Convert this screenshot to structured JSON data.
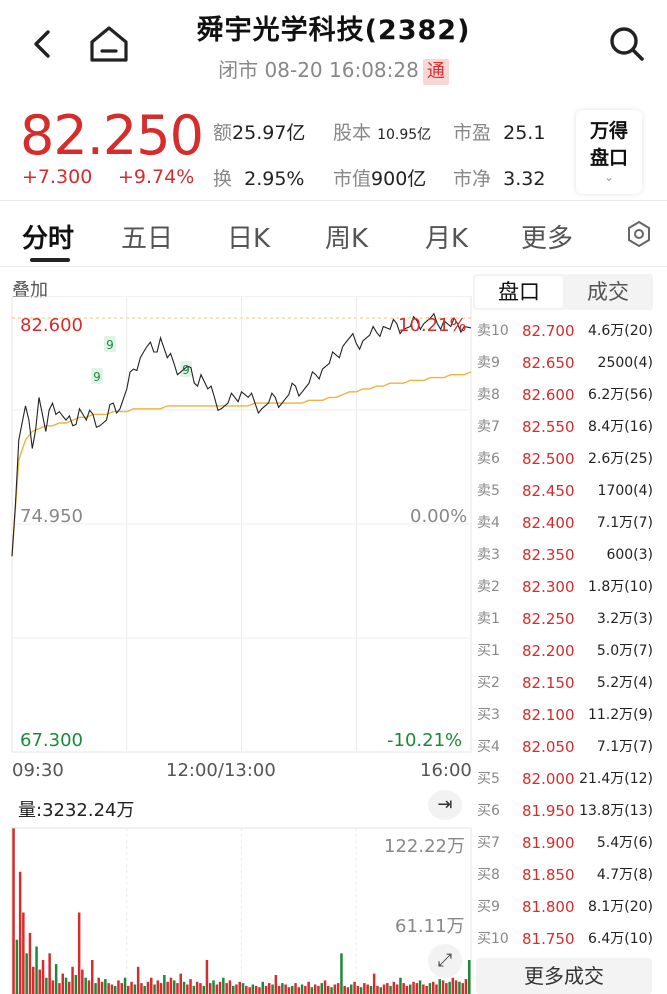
{
  "header": {
    "title": "舜宇光学科技(2382)",
    "status": "闭市 08-20 16:08:28",
    "tong_badge": "通"
  },
  "quote": {
    "price": "82.250",
    "change": "+7.300",
    "change_pct": "+9.74%",
    "amount_label": "额",
    "amount": "25.97亿",
    "shares_label": "股本",
    "shares": "10.95亿",
    "pe_label": "市盈",
    "pe": "25.1",
    "turnover_label": "换",
    "turnover": "2.95%",
    "mktcap_label": "市值",
    "mktcap": "900亿",
    "pb_label": "市净",
    "pb": "3.32",
    "wande_line1": "万得",
    "wande_line2": "盘口"
  },
  "tabs": [
    "分时",
    "五日",
    "日K",
    "周K",
    "月K",
    "更多"
  ],
  "chart": {
    "overlay_label": "叠加",
    "high_price": "82.600",
    "high_pct": "10.21%",
    "mid_price": "74.950",
    "mid_pct": "0.00%",
    "low_price": "67.300",
    "low_pct": "-10.21%",
    "time_start": "09:30",
    "time_mid": "12:00/13:00",
    "time_end": "16:00",
    "volume_label": "量:3232.24万",
    "volume_max": "122.22万",
    "volume_mid": "61.11万",
    "marker": "9",
    "colors": {
      "up": "#d62c2c",
      "down": "#1a8a3a",
      "price_line": "#222222",
      "avg_line": "#f0b23c"
    }
  },
  "order_book": {
    "tabs": [
      "盘口",
      "成交"
    ],
    "rows": [
      {
        "label": "卖10",
        "price": "82.700",
        "vol": "4.6万(20)"
      },
      {
        "label": "卖9",
        "price": "82.650",
        "vol": "2500(4)"
      },
      {
        "label": "卖8",
        "price": "82.600",
        "vol": "6.2万(56)"
      },
      {
        "label": "卖7",
        "price": "82.550",
        "vol": "8.4万(16)"
      },
      {
        "label": "卖6",
        "price": "82.500",
        "vol": "2.6万(25)"
      },
      {
        "label": "卖5",
        "price": "82.450",
        "vol": "1700(4)"
      },
      {
        "label": "卖4",
        "price": "82.400",
        "vol": "7.1万(7)"
      },
      {
        "label": "卖3",
        "price": "82.350",
        "vol": "600(3)"
      },
      {
        "label": "卖2",
        "price": "82.300",
        "vol": "1.8万(10)"
      },
      {
        "label": "卖1",
        "price": "82.250",
        "vol": "3.2万(3)"
      },
      {
        "label": "买1",
        "price": "82.200",
        "vol": "5.0万(7)"
      },
      {
        "label": "买2",
        "price": "82.150",
        "vol": "5.2万(4)"
      },
      {
        "label": "买3",
        "price": "82.100",
        "vol": "11.2万(9)"
      },
      {
        "label": "买4",
        "price": "82.050",
        "vol": "7.1万(7)"
      },
      {
        "label": "买5",
        "price": "82.000",
        "vol": "21.4万(12)"
      },
      {
        "label": "买6",
        "price": "81.950",
        "vol": "13.8万(13)"
      },
      {
        "label": "买7",
        "price": "81.900",
        "vol": "5.4万(6)"
      },
      {
        "label": "买8",
        "price": "81.850",
        "vol": "4.7万(8)"
      },
      {
        "label": "买9",
        "price": "81.800",
        "vol": "8.1万(20)"
      },
      {
        "label": "买10",
        "price": "81.750",
        "vol": "6.4万(10)"
      }
    ],
    "more_label": "更多成交"
  },
  "chart_data": {
    "type": "line",
    "title": "",
    "xlabel": "",
    "ylabel": "",
    "x_ticks": [
      "09:30",
      "12:00/13:00",
      "16:00"
    ],
    "ylim": [
      67.3,
      82.6
    ],
    "prev_close": 74.95,
    "series": [
      {
        "name": "",
        "values": [
          74.2,
          78.3,
          79.5,
          78.0,
          79.8,
          78.6,
          79.6,
          79.3,
          79.0,
          78.8,
          79.4,
          79.0,
          79.2,
          78.8,
          79.0,
          79.6,
          79.4,
          80.1,
          80.8,
          81.2,
          81.6,
          81.4,
          81.9,
          81.2,
          81.0,
          80.7,
          80.9,
          80.3,
          80.6,
          80.1,
          79.8,
          79.4,
          79.6,
          79.8,
          80.0,
          79.8,
          79.6,
          79.4,
          79.6,
          79.8,
          79.6,
          79.9,
          80.2,
          80.0,
          80.3,
          80.6,
          80.8,
          81.0,
          81.3,
          81.6,
          81.9,
          81.7,
          81.8,
          82.0,
          82.1,
          82.3,
          82.2,
          82.4,
          82.2,
          82.3,
          82.5,
          82.4,
          82.6,
          82.4,
          82.5,
          82.3,
          82.4,
          82.3,
          82.25
        ]
      },
      {
        "name": "",
        "values": [
          74.2,
          77.6,
          78.3,
          78.6,
          78.7,
          78.8,
          78.8,
          78.9,
          78.9,
          79.0,
          79.1,
          79.1,
          79.2,
          79.2,
          79.2,
          79.3,
          79.3,
          79.3,
          79.4,
          79.4,
          79.4,
          79.4,
          79.4,
          79.5,
          79.5,
          79.5,
          79.5,
          79.5,
          79.5,
          79.5,
          79.5,
          79.5,
          79.5,
          79.5,
          79.5,
          79.5,
          79.6,
          79.6,
          79.6,
          79.6,
          79.6,
          79.6,
          79.6,
          79.6,
          79.7,
          79.7,
          79.7,
          79.8,
          79.8,
          79.9,
          80.0,
          80.0,
          80.1,
          80.1,
          80.2,
          80.2,
          80.3,
          80.3,
          80.3,
          80.4,
          80.4,
          80.4,
          80.5,
          80.5,
          80.5,
          80.6,
          80.6,
          80.6,
          80.7
        ]
      }
    ],
    "volume": {
      "ylim": [
        0,
        122.22
      ],
      "unit": "万",
      "values": [
        122,
        40,
        90,
        60,
        30,
        45,
        20,
        35,
        18,
        25,
        12,
        30,
        10,
        22,
        8,
        15,
        12,
        9,
        20,
        14,
        60,
        18,
        12,
        10,
        25,
        8,
        12,
        9,
        11,
        8,
        7,
        6,
        10,
        8,
        12,
        6,
        9,
        7,
        20,
        8,
        6,
        9,
        12,
        7,
        10,
        8,
        14,
        9,
        12,
        10,
        8,
        15,
        9,
        7,
        11,
        6,
        9,
        8,
        6,
        25,
        8,
        10,
        7,
        9,
        12,
        8,
        10,
        6,
        7,
        9,
        8,
        6,
        5,
        7,
        6,
        5,
        9,
        6,
        8,
        7,
        14,
        6,
        8,
        7,
        5,
        6,
        8,
        5,
        7,
        6,
        9,
        5,
        7,
        6,
        8,
        10,
        6,
        5,
        7,
        8,
        30,
        6,
        5,
        7,
        9,
        6,
        5,
        8,
        7,
        6,
        15,
        6,
        5,
        7,
        8,
        6,
        9,
        7,
        12,
        8,
        6,
        7,
        9,
        8,
        10,
        7,
        6,
        8,
        9,
        7,
        11,
        10,
        8,
        9,
        12,
        10,
        9,
        8,
        11,
        25
      ]
    }
  }
}
